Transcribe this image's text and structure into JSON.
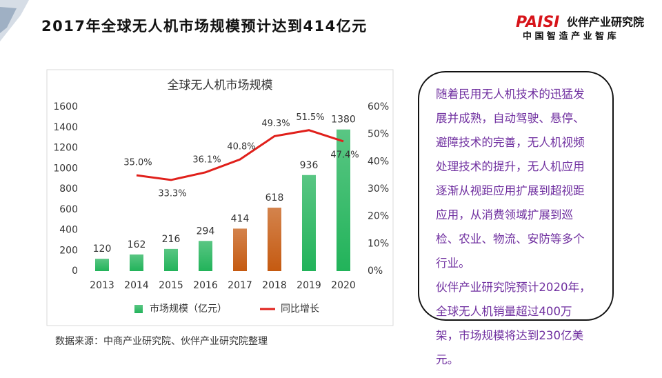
{
  "header": {
    "title": "2017年全球无人机市场规模预计达到414亿元",
    "logo": "PAISI",
    "brand": "伙伴产业研究院",
    "slogan": "中 国 智 造 产 业 智 库"
  },
  "chart_data": {
    "type": "bar",
    "title": "全球无人机市场规模",
    "categories": [
      "2013",
      "2014",
      "2015",
      "2016",
      "2017",
      "2018",
      "2019",
      "2020"
    ],
    "series": [
      {
        "name": "市场规模（亿元）",
        "color": "#22b35a",
        "colors": [
          "#22b35a",
          "#22b35a",
          "#22b35a",
          "#22b35a",
          "#c55a11",
          "#c55a11",
          "#22b35a",
          "#22b35a"
        ],
        "values": [
          120,
          162,
          216,
          294,
          414,
          618,
          936,
          1380
        ]
      },
      {
        "name": "同比增长",
        "type": "line",
        "axis": "y2",
        "color": "#e0201b",
        "values": [
          null,
          35.0,
          33.3,
          36.1,
          40.8,
          49.3,
          51.5,
          47.4
        ],
        "value_labels": [
          null,
          "35.0%",
          "33.3%",
          "36.1%",
          "40.8%",
          "49.3%",
          "51.5%",
          "47.4%"
        ]
      }
    ],
    "ylim": [
      0,
      1600
    ],
    "yticks": [
      0,
      200,
      400,
      600,
      800,
      1000,
      1200,
      1400,
      1600
    ],
    "y2lim": [
      0,
      60
    ],
    "y2ticks": [
      {
        "value": 0,
        "label": "0%"
      },
      {
        "value": 10,
        "label": "10%"
      },
      {
        "value": 20,
        "label": "20%"
      },
      {
        "value": 30,
        "label": "30%"
      },
      {
        "value": 40,
        "label": "40%"
      },
      {
        "value": 50,
        "label": "50%"
      },
      {
        "value": 60,
        "label": "60%"
      }
    ],
    "legend": "bottom"
  },
  "textbox": {
    "paragraphs": [
      "随着民用无人机技术的迅猛发展并成熟，自动驾驶、悬停、避障技术的完善，无人机视频处理技术的提升，无人机应用逐渐从视距应用扩展到超视距应用，从消费领域扩展到巡检、农业、物流、安防等多个行业。",
      "伙伴产业研究院预计2020年，全球无人机销量超过400万架，市场规模将达到230亿美元。"
    ]
  },
  "source": "数据来源：中商产业研究院、伙伴产业研究院整理"
}
